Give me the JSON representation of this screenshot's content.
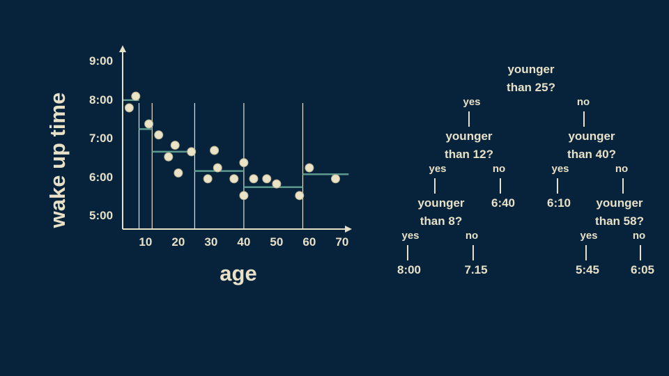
{
  "chart_data": {
    "type": "scatter",
    "xlabel": "age",
    "ylabel": "wake up time",
    "x_ticks": [
      "10",
      "20",
      "30",
      "40",
      "50",
      "60",
      "70"
    ],
    "y_ticks": [
      "9:00",
      "8:00",
      "7:00",
      "6:00",
      "5:00"
    ],
    "xlim": [
      3,
      73
    ],
    "ylim": [
      "4:40",
      "9:25"
    ],
    "points": [
      {
        "age": 5,
        "time": "7:48"
      },
      {
        "age": 7,
        "time": "8:06"
      },
      {
        "age": 11,
        "time": "7:23"
      },
      {
        "age": 14,
        "time": "7:06"
      },
      {
        "age": 17,
        "time": "6:32"
      },
      {
        "age": 19,
        "time": "6:50"
      },
      {
        "age": 20,
        "time": "6:07"
      },
      {
        "age": 24,
        "time": "6:40"
      },
      {
        "age": 29,
        "time": "5:58"
      },
      {
        "age": 31,
        "time": "6:42"
      },
      {
        "age": 32,
        "time": "6:15"
      },
      {
        "age": 37,
        "time": "5:58"
      },
      {
        "age": 40,
        "time": "6:23"
      },
      {
        "age": 40,
        "time": "5:32"
      },
      {
        "age": 43,
        "time": "5:58"
      },
      {
        "age": 47,
        "time": "5:58"
      },
      {
        "age": 50,
        "time": "5:50"
      },
      {
        "age": 57,
        "time": "5:32"
      },
      {
        "age": 60,
        "time": "6:15"
      },
      {
        "age": 68,
        "time": "5:58"
      }
    ],
    "split_ages": [
      8,
      12,
      25,
      40,
      58
    ],
    "segments": [
      {
        "from_age": 3,
        "to_age": 8,
        "time": "8:00"
      },
      {
        "from_age": 8,
        "to_age": 12,
        "time": "7:15"
      },
      {
        "from_age": 12,
        "to_age": 25,
        "time": "6:40"
      },
      {
        "from_age": 25,
        "to_age": 40,
        "time": "6:10"
      },
      {
        "from_age": 40,
        "to_age": 58,
        "time": "5:45"
      },
      {
        "from_age": 58,
        "to_age": 72,
        "time": "6:05"
      }
    ],
    "colors": {
      "background": "#06233b",
      "axis": "#e8e1c8",
      "point_fill": "#eae3c6",
      "point_stroke": "#b7ae92",
      "segment": "#5b9a8c"
    }
  },
  "tree": {
    "root": {
      "line1": "younger",
      "line2": "than 25?"
    },
    "root_yes": "yes",
    "root_no": "no",
    "left": {
      "line1": "younger",
      "line2": "than 12?"
    },
    "left_yes": "yes",
    "left_no": "no",
    "right": {
      "line1": "younger",
      "line2": "than 40?"
    },
    "right_yes": "yes",
    "right_no": "no",
    "left_left": {
      "line1": "younger",
      "line2": "than 8?"
    },
    "left_left_yes": "yes",
    "left_left_no": "no",
    "leaf_6_40": "6:40",
    "leaf_6_10": "6:10",
    "right_right": {
      "line1": "younger",
      "line2": "than 58?"
    },
    "right_right_yes": "yes",
    "right_right_no": "no",
    "leaf_8_00": "8:00",
    "leaf_7_15": "7.15",
    "leaf_5_45": "5:45",
    "leaf_6_05": "6:05"
  }
}
